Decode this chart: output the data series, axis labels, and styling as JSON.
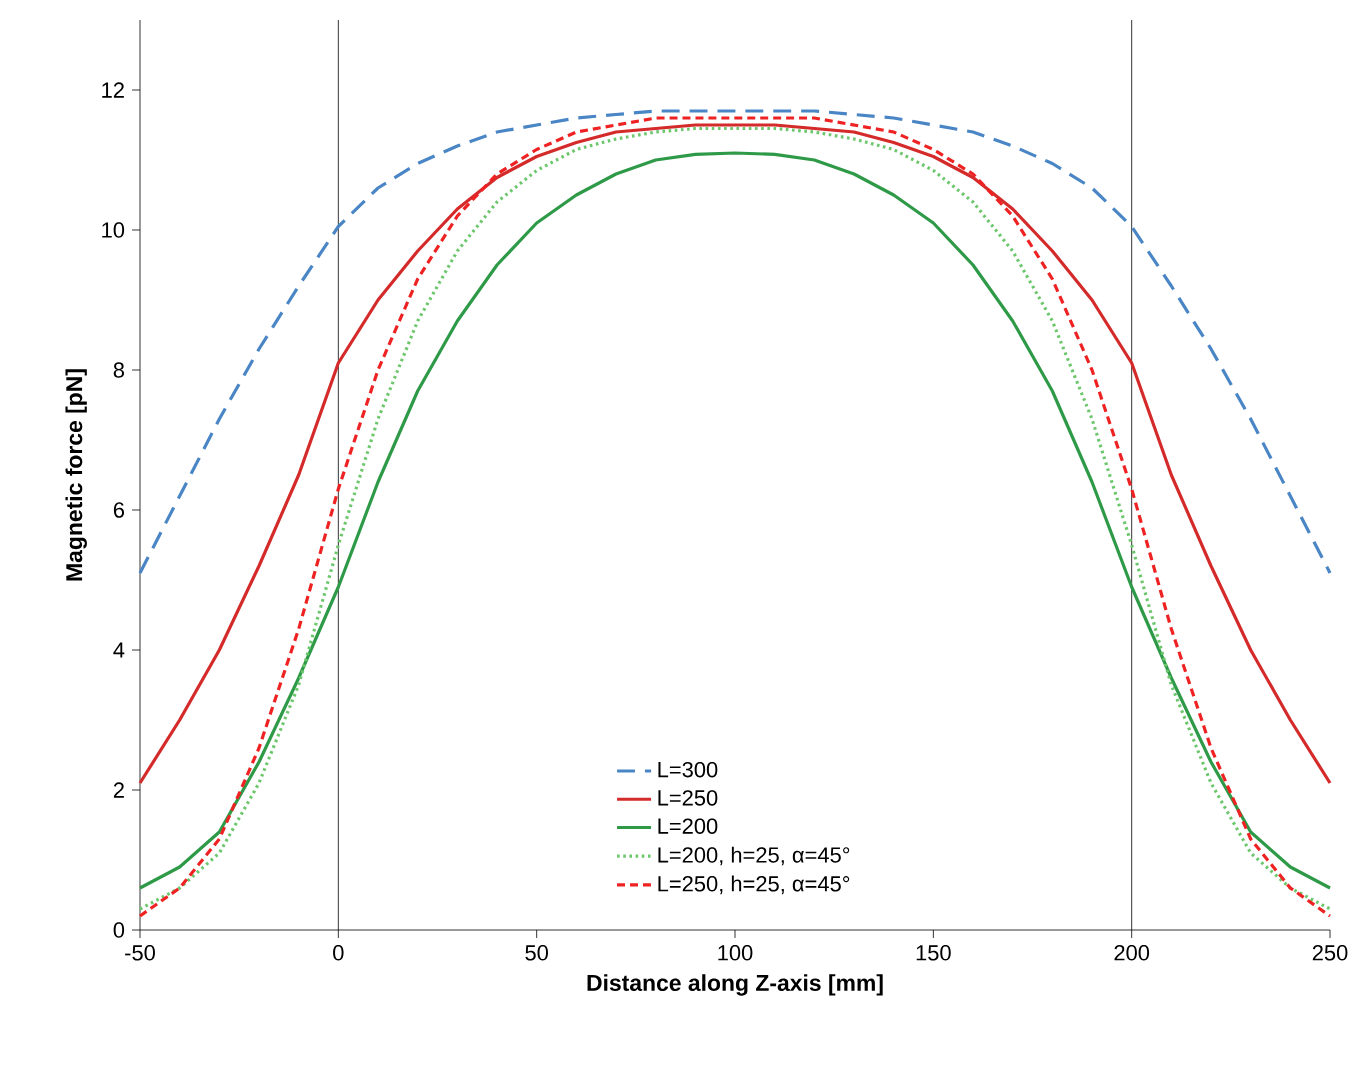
{
  "chart_data": {
    "type": "line",
    "xlabel": "Distance along Z-axis [mm]",
    "ylabel": "Magnetic force [pN]",
    "x": [
      -50,
      -40,
      -30,
      -20,
      -10,
      0,
      10,
      20,
      30,
      40,
      50,
      60,
      70,
      80,
      90,
      100,
      110,
      120,
      130,
      140,
      150,
      160,
      170,
      180,
      190,
      200,
      210,
      220,
      230,
      240,
      250
    ],
    "series": [
      {
        "name": "L=300",
        "color": "#4a86c5",
        "line_style": "dashed",
        "values": [
          5.1,
          6.2,
          7.3,
          8.3,
          9.2,
          10.05,
          10.6,
          10.95,
          11.2,
          11.4,
          11.5,
          11.6,
          11.65,
          11.7,
          11.7,
          11.7,
          11.7,
          11.7,
          11.65,
          11.6,
          11.5,
          11.4,
          11.2,
          10.95,
          10.6,
          10.05,
          9.2,
          8.3,
          7.3,
          6.2,
          5.1
        ]
      },
      {
        "name": "L=250",
        "color": "#d42a2a",
        "line_style": "solid",
        "values": [
          2.1,
          3.0,
          4.0,
          5.2,
          6.5,
          8.1,
          9.0,
          9.7,
          10.3,
          10.75,
          11.05,
          11.25,
          11.4,
          11.45,
          11.5,
          11.5,
          11.5,
          11.45,
          11.4,
          11.25,
          11.05,
          10.75,
          10.3,
          9.7,
          9.0,
          8.1,
          6.5,
          5.2,
          4.0,
          3.0,
          2.1
        ]
      },
      {
        "name": "L=200",
        "color": "#2e9a48",
        "line_style": "solid",
        "values": [
          0.6,
          0.9,
          1.4,
          2.4,
          3.6,
          4.9,
          6.4,
          7.7,
          8.7,
          9.5,
          10.1,
          10.5,
          10.8,
          11.0,
          11.08,
          11.1,
          11.08,
          11.0,
          10.8,
          10.5,
          10.1,
          9.5,
          8.7,
          7.7,
          6.4,
          4.9,
          3.6,
          2.4,
          1.4,
          0.9,
          0.6
        ]
      },
      {
        "name": "L=200, h=25, α=45°",
        "color": "#6cc76c",
        "line_style": "dotted",
        "values": [
          0.3,
          0.6,
          1.1,
          2.1,
          3.5,
          5.5,
          7.3,
          8.7,
          9.7,
          10.4,
          10.85,
          11.15,
          11.3,
          11.4,
          11.45,
          11.45,
          11.45,
          11.4,
          11.3,
          11.15,
          10.85,
          10.4,
          9.7,
          8.7,
          7.3,
          5.5,
          3.5,
          2.1,
          1.1,
          0.6,
          0.3
        ]
      },
      {
        "name": "L=250, h=25, α=45°",
        "color": "#ee2222",
        "line_style": "dashed",
        "values": [
          0.2,
          0.6,
          1.3,
          2.6,
          4.3,
          6.3,
          8.0,
          9.3,
          10.2,
          10.8,
          11.15,
          11.4,
          11.5,
          11.6,
          11.6,
          11.6,
          11.6,
          11.6,
          11.5,
          11.4,
          11.15,
          10.8,
          10.2,
          9.3,
          8.0,
          6.3,
          4.3,
          2.6,
          1.3,
          0.6,
          0.2
        ]
      }
    ],
    "xlim": [
      -50,
      250
    ],
    "xticks": [
      -50,
      0,
      50,
      100,
      150,
      200,
      250
    ],
    "ylim": [
      0,
      13
    ],
    "yticks": [
      0,
      2,
      4,
      6,
      8,
      10,
      12
    ],
    "ref_lines": [
      {
        "axis": "x",
        "value": 0,
        "color": "#000000"
      },
      {
        "axis": "x",
        "value": 200,
        "color": "#000000"
      }
    ],
    "grid": false,
    "legend": "bottom",
    "marker": "none"
  }
}
